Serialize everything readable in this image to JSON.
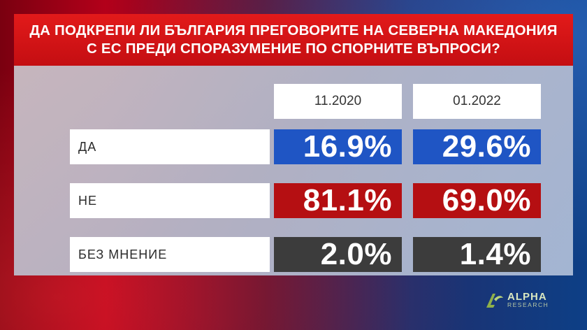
{
  "title": {
    "line1": "ДА ПОДКРЕПИ ЛИ БЪЛГАРИЯ ПРЕГОВОРИТЕ НА СЕВЕРНА МАКЕДОНИЯ",
    "line2": "С ЕС ПРЕДИ СПОРАЗУМЕНИЕ ПО СПОРНИТЕ ВЪПРОСИ?"
  },
  "columns": [
    "11.2020",
    "01.2022"
  ],
  "rows": [
    {
      "label": "ДА",
      "values": [
        "16.9%",
        "29.6%"
      ],
      "color": "#1f55c4"
    },
    {
      "label": "НЕ",
      "values": [
        "81.1%",
        "69.0%"
      ],
      "color": "#b50f12"
    },
    {
      "label": "БЕЗ МНЕНИЕ",
      "values": [
        "2.0%",
        "1.4%"
      ],
      "color": "#3c3c3c"
    }
  ],
  "logo": {
    "main": "ALPHA",
    "sub": "RESEARCH",
    "icon": "alpha-logo-icon"
  }
}
